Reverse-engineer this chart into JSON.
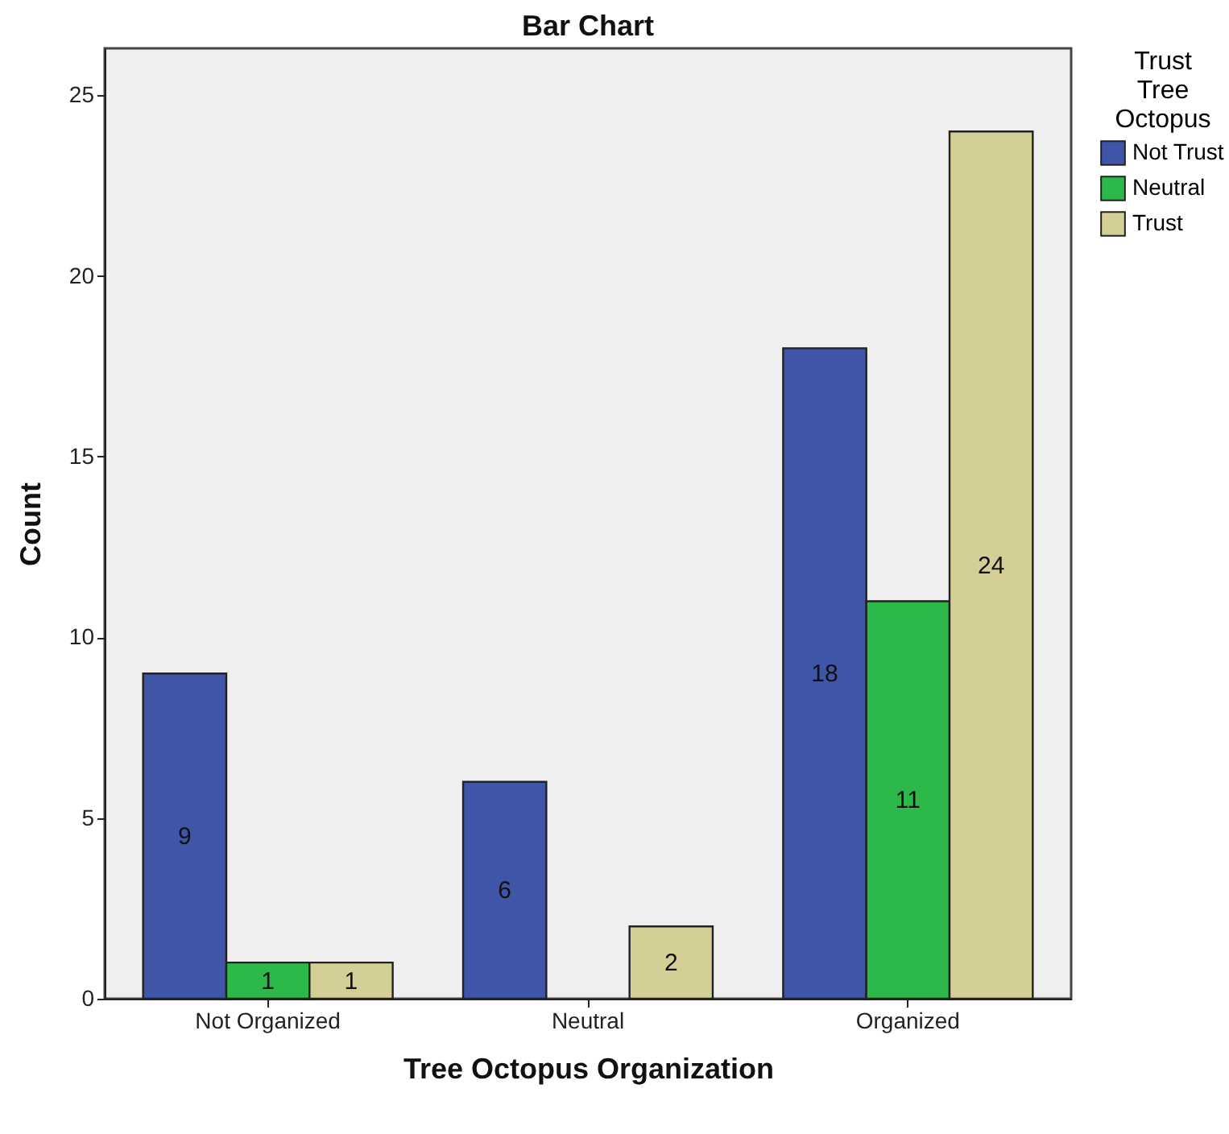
{
  "chart_data": {
    "type": "bar",
    "title": "Bar Chart",
    "xlabel": "Tree Octopus Organization",
    "ylabel": "Count",
    "legend_title": "Trust Tree Octopus",
    "categories": [
      "Not Organized",
      "Neutral",
      "Organized"
    ],
    "series": [
      {
        "name": "Not Trust",
        "color": "#3f55a8",
        "values": [
          9,
          6,
          18
        ]
      },
      {
        "name": "Neutral",
        "color": "#2db84a",
        "values": [
          1,
          null,
          11
        ]
      },
      {
        "name": "Trust",
        "color": "#d4cf96",
        "values": [
          1,
          2,
          24
        ]
      }
    ],
    "ylim": [
      0,
      26.3
    ],
    "yticks": [
      0,
      5,
      10,
      15,
      20,
      25
    ],
    "grid": false,
    "legend": "right",
    "data_labels": true
  }
}
